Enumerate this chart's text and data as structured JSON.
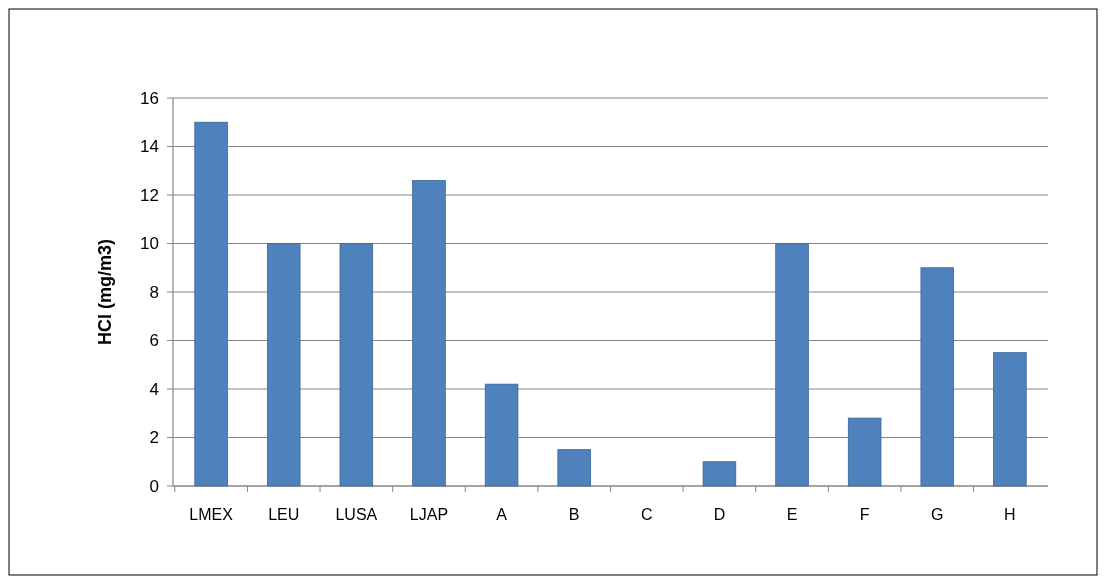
{
  "chart_data": {
    "type": "bar",
    "ylabel": "HCl (mg/m3)",
    "categories": [
      "LMEX",
      "LEU",
      "LUSA",
      "LJAP",
      "A",
      "B",
      "C",
      "D",
      "E",
      "F",
      "G",
      "H"
    ],
    "values": [
      15,
      10,
      10,
      12.6,
      4.2,
      1.5,
      0,
      1,
      10,
      2.8,
      9,
      5.5
    ],
    "color": "#4f81bd",
    "ylim": [
      0,
      16
    ],
    "yticks": [
      0,
      2,
      4,
      6,
      8,
      10,
      12,
      14,
      16
    ],
    "grid": "y"
  }
}
